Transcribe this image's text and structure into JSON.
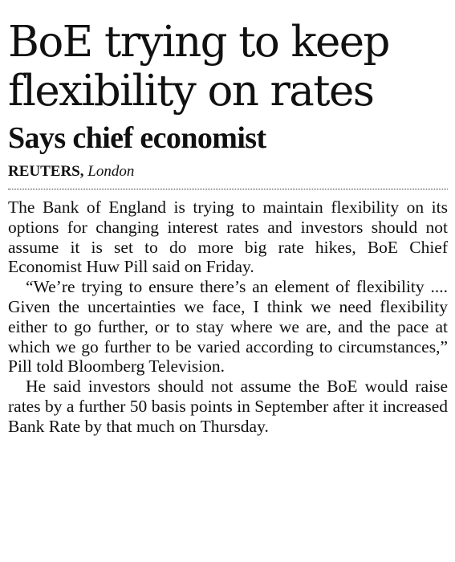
{
  "article": {
    "headline": "BoE trying to keep flexibility on rates",
    "subheadline": "Says chief economist",
    "byline": {
      "agency": "REUTERS,",
      "location": "London"
    },
    "paragraphs": [
      "The Bank of England is trying to maintain flexibility on its options for changing interest rates and investors should not assume it is set to do more big rate hikes, BoE Chief Economist Huw Pill said on Friday.",
      "“We’re trying to ensure there’s an element of flexibility .... Given the uncertainties we face, I think we need flexibility either to go further, or to stay where we are, and the pace at which we go further to be varied according to circumstances,” Pill told Bloomberg Television.",
      "He said investors should not assume the BoE would raise rates by a further 50 basis points in September after it increased Bank Rate by that much on Thursday."
    ]
  }
}
